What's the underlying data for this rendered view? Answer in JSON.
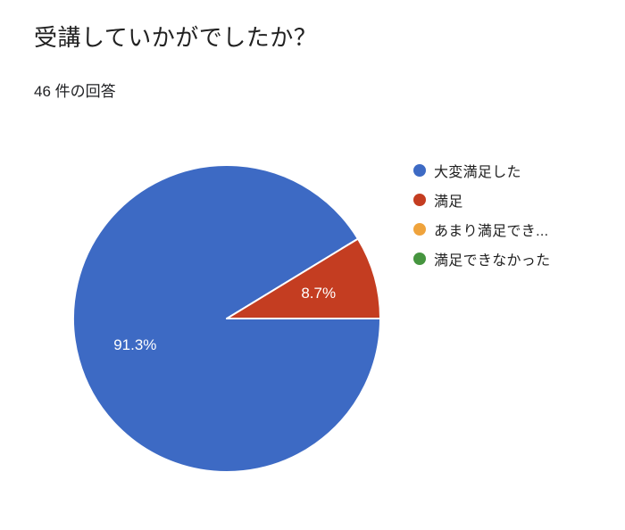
{
  "page": {
    "title": "受講していかがでしたか？",
    "response_count": "46 件の回答"
  },
  "chart_data": {
    "type": "pie",
    "title": "受講していかがでしたか？",
    "subtitle": "46 件の回答",
    "start_angle_deg": 0,
    "direction": "clockwise",
    "legend_position": "right",
    "label_radius_ratio": 0.62,
    "slices": [
      {
        "label": "大変満足した",
        "percent": 91.3,
        "color": "#3d6ac4",
        "show_label": true
      },
      {
        "label": "満足",
        "percent": 8.7,
        "color": "#c43d21",
        "show_label": true
      },
      {
        "label": "あまり満足でき...",
        "percent": 0,
        "color": "#efa33c",
        "show_label": false
      },
      {
        "label": "満足できなかった",
        "percent": 0,
        "color": "#46953f",
        "show_label": false
      }
    ]
  }
}
